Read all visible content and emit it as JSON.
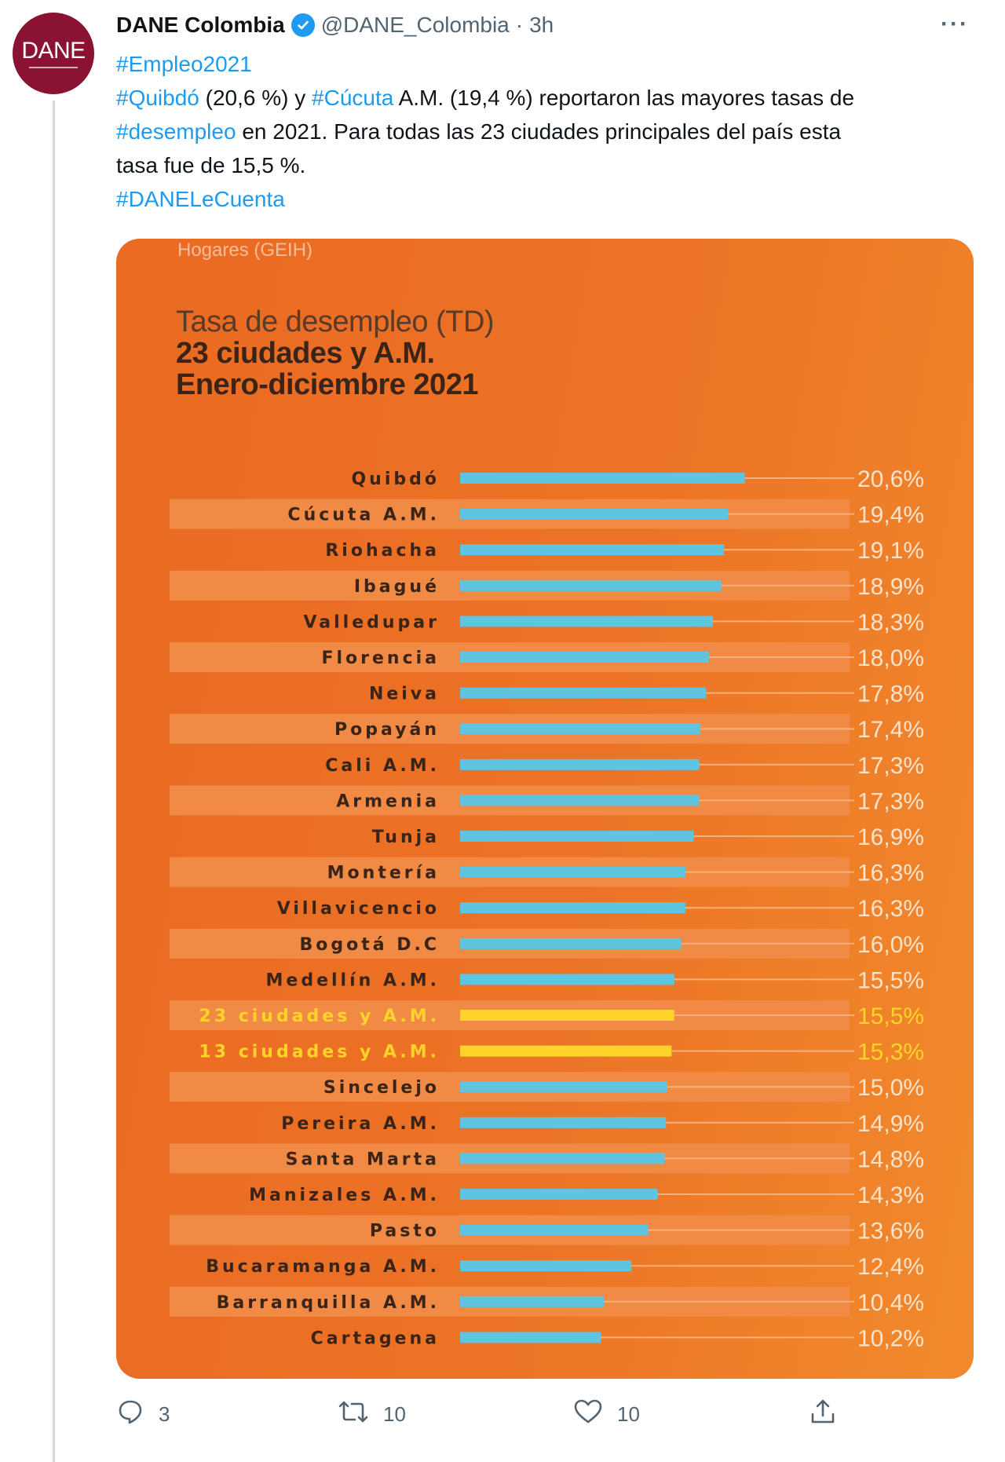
{
  "tweet": {
    "display_name": "DANE Colombia",
    "handle": "@DANE_Colombia",
    "separator": "·",
    "time": "3h",
    "more": "···",
    "avatar_text": "DANE",
    "line1_tag": "#Empleo2021",
    "line2_tag_a": "#Quibdó",
    "line2_text_a": " (20,6 %) y ",
    "line2_tag_b": "#Cúcuta",
    "line2_text_b": " A.M. (19,4 %) reportaron las mayores tasas de",
    "line3_tag": "#desempleo",
    "line3_text": " en 2021. Para todas las 23 ciudades principales del país esta",
    "line4_text": "tasa fue de 15,5 %.",
    "line5_tag": "#DANELeCuenta"
  },
  "card": {
    "source": "Hogares (GEIH)",
    "title_line1": "Tasa de desempleo (TD)",
    "title_line2": "23 ciudades y A.M.",
    "title_line3": "Enero-diciembre 2021"
  },
  "actions": {
    "replies": "3",
    "retweets": "10",
    "likes": "10"
  },
  "colors": {
    "bar": "#5ec4e0",
    "bar_highlight": "#ffd42a",
    "track": "#f6b07a",
    "band": "#f08a44",
    "link": "#1d9bf0"
  },
  "chart_data": {
    "type": "bar",
    "orientation": "horizontal",
    "title": "Tasa de desempleo (TD)",
    "subtitle": "23 ciudades y A.M. Enero-diciembre 2021",
    "categories": [
      "Quibdó",
      "Cúcuta A.M.",
      "Riohacha",
      "Ibagué",
      "Valledupar",
      "Florencia",
      "Neiva",
      "Popayán",
      "Cali A.M.",
      "Armenia",
      "Tunja",
      "Montería",
      "Villavicencio",
      "Bogotá D.C",
      "Medellín A.M.",
      "23 ciudades y A.M.",
      "13 ciudades y A.M.",
      "Sincelejo",
      "Pereira A.M.",
      "Santa Marta",
      "Manizales A.M.",
      "Pasto",
      "Bucaramanga A.M.",
      "Barranquilla A.M.",
      "Cartagena"
    ],
    "values": [
      20.6,
      19.4,
      19.1,
      18.9,
      18.3,
      18.0,
      17.8,
      17.4,
      17.3,
      17.3,
      16.9,
      16.3,
      16.3,
      16.0,
      15.5,
      15.5,
      15.3,
      15.0,
      14.9,
      14.8,
      14.3,
      13.6,
      12.4,
      10.4,
      10.2
    ],
    "value_labels": [
      "20,6%",
      "19,4%",
      "19,1%",
      "18,9%",
      "18,3%",
      "18,0%",
      "17,8%",
      "17,4%",
      "17,3%",
      "17,3%",
      "16,9%",
      "16,3%",
      "16,3%",
      "16,0%",
      "15,5%",
      "15,5%",
      "15,3%",
      "15,0%",
      "14,9%",
      "14,8%",
      "14,3%",
      "13,6%",
      "12,4%",
      "10,4%",
      "10,2%"
    ],
    "highlighted": [
      "23 ciudades y A.M.",
      "13 ciudades y A.M."
    ],
    "xlim": [
      0,
      24.6
    ]
  }
}
